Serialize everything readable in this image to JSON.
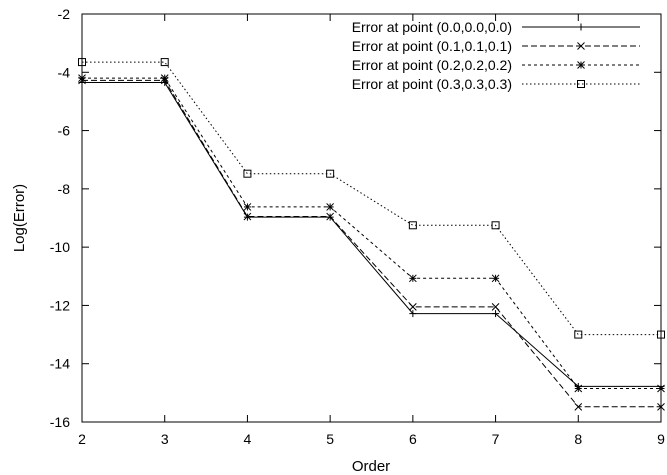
{
  "chart_data": {
    "type": "line",
    "title": "",
    "xlabel": "Order",
    "ylabel": "Log(Error)",
    "xlim": [
      2,
      9
    ],
    "ylim": [
      -16,
      -2
    ],
    "xticks": [
      2,
      3,
      4,
      5,
      6,
      7,
      8,
      9
    ],
    "yticks": [
      -16,
      -14,
      -12,
      -10,
      -8,
      -6,
      -4,
      -2
    ],
    "grid": false,
    "legend_position": "top-right",
    "x": [
      2,
      3,
      4,
      5,
      6,
      7,
      8,
      9
    ],
    "series": [
      {
        "name": "Error at point (0.0,0.0,0.0)",
        "marker": "plus",
        "dash": "solid",
        "values": [
          -4.35,
          -4.35,
          -8.97,
          -8.97,
          -12.28,
          -12.28,
          -14.78,
          -14.78
        ]
      },
      {
        "name": "Error at point (0.1,0.1,0.1)",
        "marker": "cross",
        "dash": "dashed",
        "values": [
          -4.28,
          -4.28,
          -8.95,
          -8.95,
          -12.05,
          -12.05,
          -15.48,
          -15.48
        ]
      },
      {
        "name": "Error at point (0.2,0.2,0.2)",
        "marker": "star",
        "dash": "short-dashed",
        "values": [
          -4.2,
          -4.2,
          -8.62,
          -8.62,
          -11.07,
          -11.07,
          -14.85,
          -14.85
        ]
      },
      {
        "name": "Error at point (0.3,0.3,0.3)",
        "marker": "square",
        "dash": "dotted",
        "values": [
          -3.65,
          -3.65,
          -7.48,
          -7.48,
          -9.25,
          -9.25,
          -13.0,
          -13.0
        ]
      }
    ]
  }
}
